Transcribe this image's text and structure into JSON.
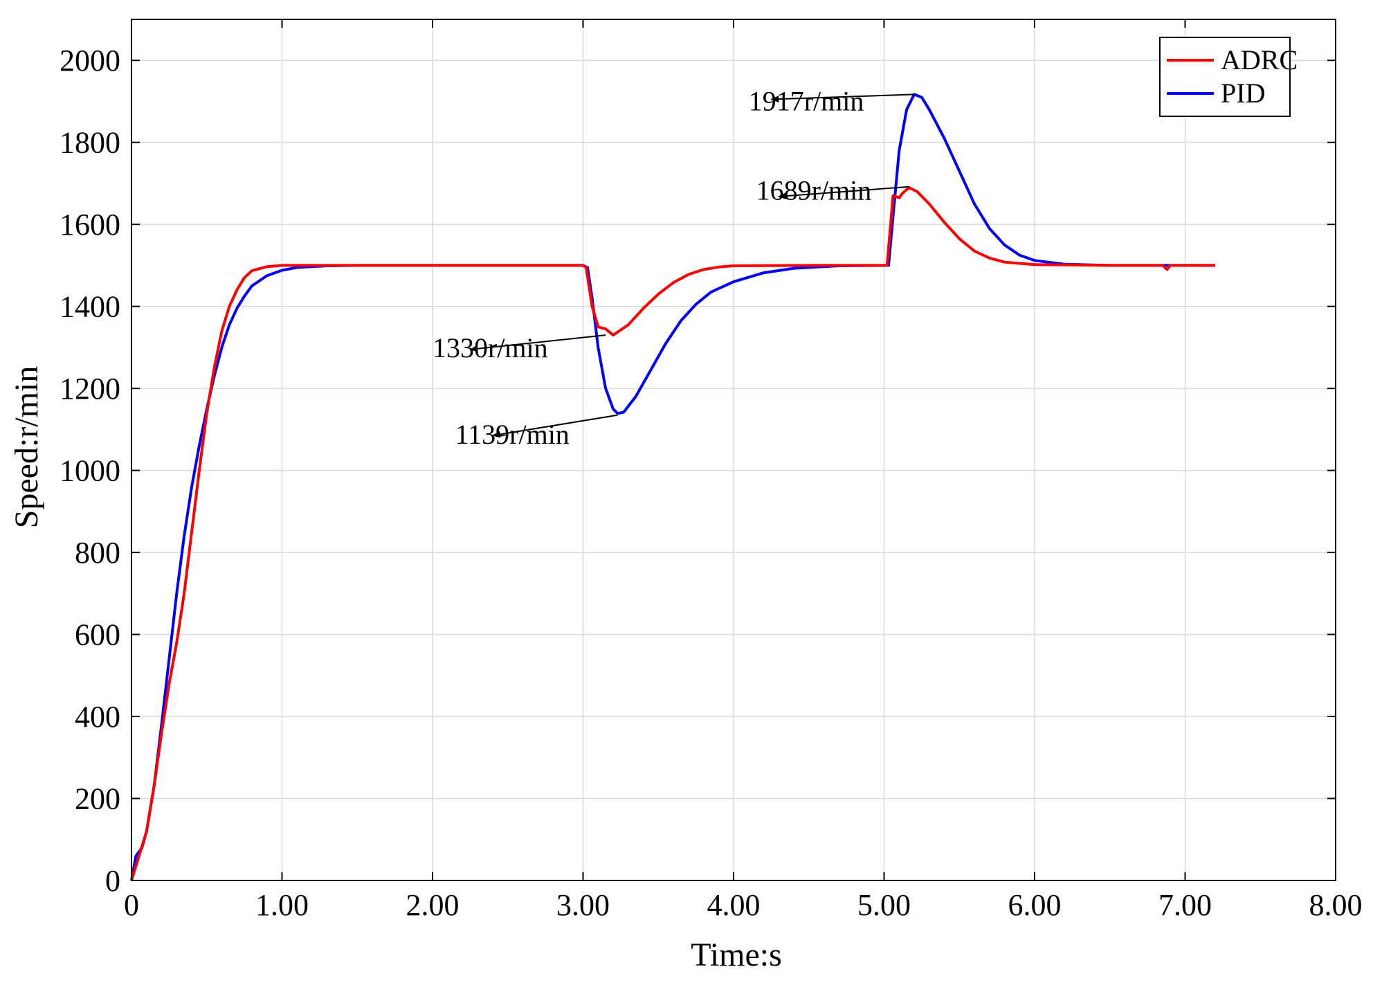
{
  "chart_data": {
    "type": "line",
    "xlabel": "Time:s",
    "ylabel": "Speed:r/min",
    "xlim": [
      0,
      8
    ],
    "ylim": [
      0,
      2100
    ],
    "grid": true,
    "legend_position": "top-right",
    "x_ticks": [
      {
        "value": 0,
        "label": "0"
      },
      {
        "value": 1,
        "label": "1.00"
      },
      {
        "value": 2,
        "label": "2.00"
      },
      {
        "value": 3,
        "label": "3.00"
      },
      {
        "value": 4,
        "label": "4.00"
      },
      {
        "value": 5,
        "label": "5.00"
      },
      {
        "value": 6,
        "label": "6.00"
      },
      {
        "value": 7,
        "label": "7.00"
      },
      {
        "value": 8,
        "label": "8.00"
      }
    ],
    "y_ticks": [
      {
        "value": 0,
        "label": "0"
      },
      {
        "value": 200,
        "label": "200"
      },
      {
        "value": 400,
        "label": "400"
      },
      {
        "value": 600,
        "label": "600"
      },
      {
        "value": 800,
        "label": "800"
      },
      {
        "value": 1000,
        "label": "1000"
      },
      {
        "value": 1200,
        "label": "1200"
      },
      {
        "value": 1400,
        "label": "1400"
      },
      {
        "value": 1600,
        "label": "1600"
      },
      {
        "value": 1800,
        "label": "1800"
      },
      {
        "value": 2000,
        "label": "2000"
      }
    ],
    "series": [
      {
        "name": "ADRC",
        "color": "#ff0000",
        "points": [
          [
            0,
            0
          ],
          [
            0.05,
            60
          ],
          [
            0.1,
            120
          ],
          [
            0.15,
            230
          ],
          [
            0.2,
            360
          ],
          [
            0.25,
            480
          ],
          [
            0.3,
            580
          ],
          [
            0.35,
            700
          ],
          [
            0.4,
            850
          ],
          [
            0.45,
            1000
          ],
          [
            0.5,
            1140
          ],
          [
            0.55,
            1250
          ],
          [
            0.6,
            1340
          ],
          [
            0.65,
            1400
          ],
          [
            0.7,
            1440
          ],
          [
            0.75,
            1470
          ],
          [
            0.8,
            1487
          ],
          [
            0.9,
            1497
          ],
          [
            1.0,
            1500
          ],
          [
            2.0,
            1500
          ],
          [
            3.0,
            1500
          ],
          [
            3.02,
            1495
          ],
          [
            3.06,
            1400
          ],
          [
            3.1,
            1350
          ],
          [
            3.15,
            1345
          ],
          [
            3.2,
            1330
          ],
          [
            3.3,
            1355
          ],
          [
            3.4,
            1395
          ],
          [
            3.5,
            1430
          ],
          [
            3.6,
            1458
          ],
          [
            3.7,
            1478
          ],
          [
            3.8,
            1490
          ],
          [
            3.9,
            1496
          ],
          [
            4.0,
            1499
          ],
          [
            4.5,
            1500
          ],
          [
            5.02,
            1500
          ],
          [
            5.06,
            1670
          ],
          [
            5.1,
            1665
          ],
          [
            5.12,
            1675
          ],
          [
            5.15,
            1685
          ],
          [
            5.17,
            1689
          ],
          [
            5.22,
            1680
          ],
          [
            5.3,
            1650
          ],
          [
            5.4,
            1605
          ],
          [
            5.5,
            1565
          ],
          [
            5.6,
            1535
          ],
          [
            5.7,
            1518
          ],
          [
            5.8,
            1508
          ],
          [
            6.0,
            1502
          ],
          [
            6.5,
            1500
          ],
          [
            6.85,
            1500
          ],
          [
            6.88,
            1490
          ],
          [
            6.9,
            1500
          ],
          [
            7.2,
            1500
          ]
        ]
      },
      {
        "name": "PID",
        "color": "#0000ff",
        "points": [
          [
            0,
            0
          ],
          [
            0.03,
            60
          ],
          [
            0.07,
            80
          ],
          [
            0.1,
            120
          ],
          [
            0.15,
            230
          ],
          [
            0.2,
            380
          ],
          [
            0.25,
            540
          ],
          [
            0.3,
            700
          ],
          [
            0.35,
            840
          ],
          [
            0.4,
            960
          ],
          [
            0.45,
            1060
          ],
          [
            0.5,
            1150
          ],
          [
            0.55,
            1230
          ],
          [
            0.6,
            1300
          ],
          [
            0.65,
            1355
          ],
          [
            0.7,
            1395
          ],
          [
            0.75,
            1425
          ],
          [
            0.8,
            1450
          ],
          [
            0.9,
            1475
          ],
          [
            1.0,
            1488
          ],
          [
            1.1,
            1495
          ],
          [
            1.3,
            1499
          ],
          [
            1.5,
            1500
          ],
          [
            2.0,
            1500
          ],
          [
            3.0,
            1500
          ],
          [
            3.03,
            1495
          ],
          [
            3.06,
            1420
          ],
          [
            3.1,
            1300
          ],
          [
            3.15,
            1200
          ],
          [
            3.2,
            1150
          ],
          [
            3.23,
            1139
          ],
          [
            3.27,
            1142
          ],
          [
            3.35,
            1180
          ],
          [
            3.45,
            1245
          ],
          [
            3.55,
            1310
          ],
          [
            3.65,
            1365
          ],
          [
            3.75,
            1405
          ],
          [
            3.85,
            1435
          ],
          [
            4.0,
            1460
          ],
          [
            4.2,
            1482
          ],
          [
            4.4,
            1493
          ],
          [
            4.7,
            1499
          ],
          [
            5.03,
            1500
          ],
          [
            5.06,
            1620
          ],
          [
            5.1,
            1780
          ],
          [
            5.15,
            1880
          ],
          [
            5.2,
            1917
          ],
          [
            5.25,
            1910
          ],
          [
            5.3,
            1880
          ],
          [
            5.4,
            1810
          ],
          [
            5.5,
            1730
          ],
          [
            5.6,
            1650
          ],
          [
            5.7,
            1590
          ],
          [
            5.8,
            1550
          ],
          [
            5.9,
            1525
          ],
          [
            6.0,
            1512
          ],
          [
            6.2,
            1503
          ],
          [
            6.5,
            1500
          ],
          [
            7.2,
            1500
          ]
        ]
      }
    ],
    "annotations": [
      {
        "text": "1917r/min",
        "label_x": 4.1,
        "label_y": 1878,
        "arrow_from": [
          5.2,
          1917
        ],
        "arrow_to": [
          4.25,
          1905
        ]
      },
      {
        "text": "1689r/min",
        "label_x": 4.15,
        "label_y": 1660,
        "arrow_from": [
          5.17,
          1692
        ],
        "arrow_to": [
          4.3,
          1668
        ]
      },
      {
        "text": "1330r/min",
        "label_x": 2.0,
        "label_y": 1276,
        "arrow_from": [
          3.15,
          1330
        ],
        "arrow_to": [
          2.25,
          1295
        ]
      },
      {
        "text": "1139r/min",
        "label_x": 2.15,
        "label_y": 1065,
        "arrow_from": [
          3.23,
          1135
        ],
        "arrow_to": [
          2.4,
          1085
        ]
      }
    ]
  }
}
